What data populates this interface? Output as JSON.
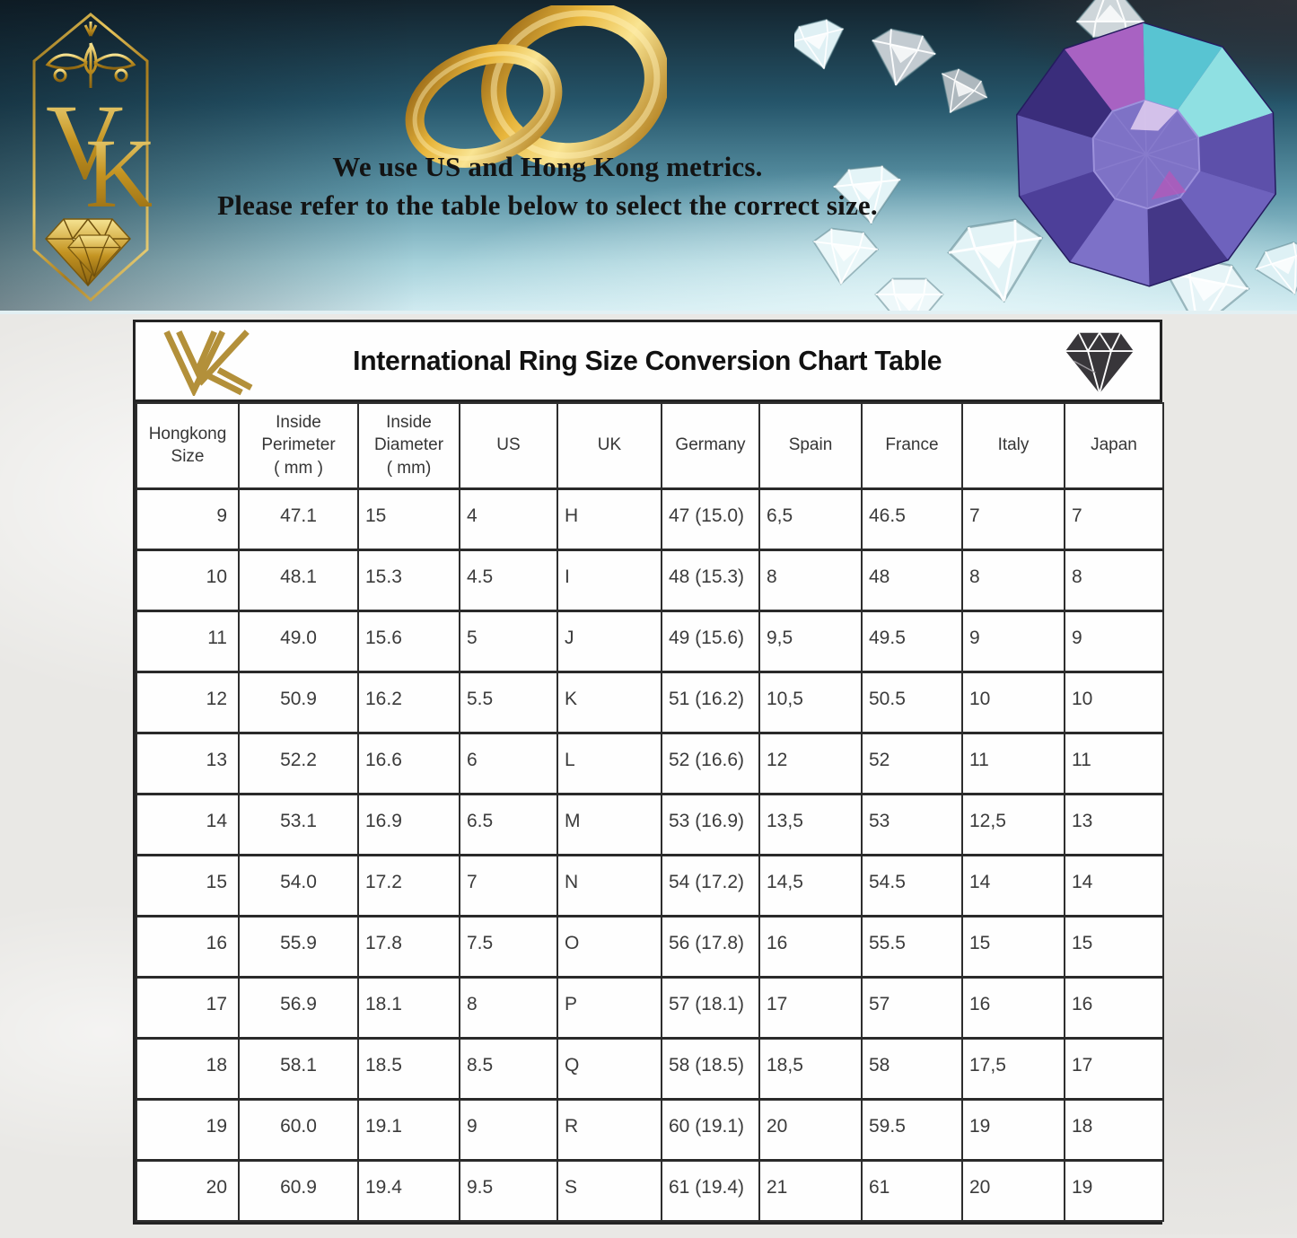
{
  "banner": {
    "line1": "We use US and Hong Kong metrics.",
    "line2": "Please refer to the table below to select the correct size.",
    "logo_monogram": "VK"
  },
  "size_chart": {
    "title": "International Ring Size Conversion Chart Table",
    "columns": [
      {
        "id": "hongkong",
        "label_lines": [
          "Hongkong",
          "Size"
        ]
      },
      {
        "id": "perimeter",
        "label_lines": [
          "Inside",
          "Perimeter",
          "( mm )"
        ]
      },
      {
        "id": "diameter",
        "label_lines": [
          "Inside",
          "Diameter",
          "( mm)"
        ]
      },
      {
        "id": "us",
        "label_lines": [
          "US"
        ]
      },
      {
        "id": "uk",
        "label_lines": [
          "UK"
        ]
      },
      {
        "id": "germany",
        "label_lines": [
          "Germany"
        ]
      },
      {
        "id": "spain",
        "label_lines": [
          "Spain"
        ]
      },
      {
        "id": "france",
        "label_lines": [
          "France"
        ]
      },
      {
        "id": "italy",
        "label_lines": [
          "Italy"
        ]
      },
      {
        "id": "japan",
        "label_lines": [
          "Japan"
        ]
      }
    ],
    "rows": [
      [
        "9",
        "47.1",
        "15",
        "4",
        "H",
        "47 (15.0)",
        "6,5",
        "46.5",
        "7",
        "7"
      ],
      [
        "10",
        "48.1",
        "15.3",
        "4.5",
        "I",
        "48 (15.3)",
        "8",
        "48",
        "8",
        "8"
      ],
      [
        "11",
        "49.0",
        "15.6",
        "5",
        "J",
        "49 (15.6)",
        "9,5",
        "49.5",
        "9",
        "9"
      ],
      [
        "12",
        "50.9",
        "16.2",
        "5.5",
        "K",
        "51 (16.2)",
        "10,5",
        "50.5",
        "10",
        "10"
      ],
      [
        "13",
        "52.2",
        "16.6",
        "6",
        "L",
        "52 (16.6)",
        "12",
        "52",
        "11",
        "11"
      ],
      [
        "14",
        "53.1",
        "16.9",
        "6.5",
        "M",
        "53 (16.9)",
        "13,5",
        "53",
        "12,5",
        "13"
      ],
      [
        "15",
        "54.0",
        "17.2",
        "7",
        "N",
        "54 (17.2)",
        "14,5",
        "54.5",
        "14",
        "14"
      ],
      [
        "16",
        "55.9",
        "17.8",
        "7.5",
        "O",
        "56 (17.8)",
        "16",
        "55.5",
        "15",
        "15"
      ],
      [
        "17",
        "56.9",
        "18.1",
        "8",
        "P",
        "57 (18.1)",
        "17",
        "57",
        "16",
        "16"
      ],
      [
        "18",
        "58.1",
        "18.5",
        "8.5",
        "Q",
        "58 (18.5)",
        "18,5",
        "58",
        "17,5",
        "17"
      ],
      [
        "19",
        "60.0",
        "19.1",
        "9",
        "R",
        "60 (19.1)",
        "20",
        "59.5",
        "19",
        "18"
      ],
      [
        "20",
        "60.9",
        "19.4",
        "9.5",
        "S",
        "61 (19.4)",
        "21",
        "61",
        "20",
        "19"
      ]
    ]
  },
  "colors": {
    "gold_accent": "#c19a3a",
    "banner_dark_teal": "#13232d",
    "banner_light_blue": "#cfeaf0",
    "table_border": "#2a2a2a",
    "cell_text": "#3b3b3b",
    "big_gem_purple": "#5a4da8"
  }
}
